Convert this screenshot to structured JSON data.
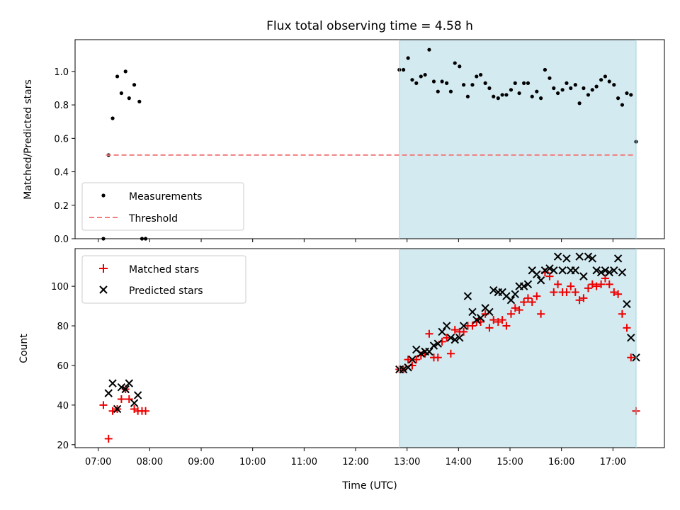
{
  "chart_data": {
    "type": "scatter",
    "title": "Flux total observing time = 4.58 h",
    "xlabel": "Time (UTC)",
    "x_ticks": [
      "07:00",
      "08:00",
      "09:00",
      "10:00",
      "11:00",
      "12:00",
      "13:00",
      "14:00",
      "15:00",
      "16:00",
      "17:00"
    ],
    "xlim": [
      6.55,
      18.0
    ],
    "shaded_region": {
      "x_start": 12.85,
      "x_end": 17.45,
      "color": "#d3eaf0"
    },
    "panels": [
      {
        "ylabel": "Matched/Predicted stars",
        "ylim": [
          0.0,
          1.19
        ],
        "y_ticks": [
          0.0,
          0.2,
          0.4,
          0.6,
          0.8,
          1.0
        ],
        "y_tick_labels": [
          "0.0",
          "0.2",
          "0.4",
          "0.6",
          "0.8",
          "1.0"
        ],
        "legend_position": "lower-left",
        "series": [
          {
            "name": "Measurements",
            "marker": "dot",
            "color": "#000000",
            "points": [
              [
                7.1,
                0.0
              ],
              [
                7.2,
                0.5
              ],
              [
                7.28,
                0.72
              ],
              [
                7.37,
                0.97
              ],
              [
                7.45,
                0.87
              ],
              [
                7.53,
                1.0
              ],
              [
                7.6,
                0.84
              ],
              [
                7.7,
                0.92
              ],
              [
                7.8,
                0.82
              ],
              [
                7.85,
                0.0
              ],
              [
                7.92,
                0.0
              ],
              [
                12.85,
                1.01
              ],
              [
                12.93,
                1.01
              ],
              [
                13.02,
                1.08
              ],
              [
                13.1,
                0.95
              ],
              [
                13.18,
                0.93
              ],
              [
                13.27,
                0.97
              ],
              [
                13.35,
                0.98
              ],
              [
                13.43,
                1.13
              ],
              [
                13.52,
                0.94
              ],
              [
                13.6,
                0.88
              ],
              [
                13.68,
                0.94
              ],
              [
                13.77,
                0.93
              ],
              [
                13.85,
                0.88
              ],
              [
                13.93,
                1.05
              ],
              [
                14.02,
                1.03
              ],
              [
                14.1,
                0.92
              ],
              [
                14.18,
                0.85
              ],
              [
                14.27,
                0.92
              ],
              [
                14.35,
                0.97
              ],
              [
                14.43,
                0.98
              ],
              [
                14.52,
                0.93
              ],
              [
                14.6,
                0.9
              ],
              [
                14.68,
                0.85
              ],
              [
                14.77,
                0.84
              ],
              [
                14.85,
                0.86
              ],
              [
                14.93,
                0.86
              ],
              [
                15.02,
                0.89
              ],
              [
                15.1,
                0.93
              ],
              [
                15.18,
                0.87
              ],
              [
                15.27,
                0.93
              ],
              [
                15.35,
                0.93
              ],
              [
                15.43,
                0.85
              ],
              [
                15.52,
                0.88
              ],
              [
                15.6,
                0.84
              ],
              [
                15.68,
                1.01
              ],
              [
                15.77,
                0.96
              ],
              [
                15.85,
                0.9
              ],
              [
                15.93,
                0.87
              ],
              [
                16.02,
                0.89
              ],
              [
                16.1,
                0.93
              ],
              [
                16.18,
                0.9
              ],
              [
                16.27,
                0.92
              ],
              [
                16.35,
                0.81
              ],
              [
                16.43,
                0.9
              ],
              [
                16.52,
                0.86
              ],
              [
                16.6,
                0.89
              ],
              [
                16.68,
                0.91
              ],
              [
                16.77,
                0.95
              ],
              [
                16.85,
                0.97
              ],
              [
                16.93,
                0.94
              ],
              [
                17.02,
                0.92
              ],
              [
                17.1,
                0.84
              ],
              [
                17.18,
                0.8
              ],
              [
                17.27,
                0.87
              ],
              [
                17.35,
                0.86
              ],
              [
                17.45,
                0.58
              ]
            ]
          },
          {
            "name": "Threshold",
            "marker": "dashed-line",
            "color": "#f08080",
            "points": [
              [
                7.15,
                0.5
              ],
              [
                17.45,
                0.5
              ]
            ]
          }
        ]
      },
      {
        "ylabel": "Count",
        "ylim": [
          18.5,
          119
        ],
        "y_ticks": [
          20,
          40,
          60,
          80,
          100
        ],
        "y_tick_labels": [
          "20",
          "40",
          "60",
          "80",
          "100"
        ],
        "legend_position": "upper-left",
        "series": [
          {
            "name": "Matched stars",
            "marker": "plus",
            "color": "#ee0000",
            "points": [
              [
                7.1,
                40
              ],
              [
                7.2,
                23
              ],
              [
                7.28,
                37
              ],
              [
                7.37,
                38
              ],
              [
                7.45,
                43
              ],
              [
                7.53,
                48
              ],
              [
                7.6,
                43
              ],
              [
                7.7,
                38
              ],
              [
                7.77,
                37
              ],
              [
                7.85,
                37
              ],
              [
                7.92,
                37
              ],
              [
                12.85,
                58
              ],
              [
                12.93,
                58
              ],
              [
                13.02,
                63
              ],
              [
                13.1,
                60
              ],
              [
                13.18,
                63
              ],
              [
                13.27,
                65
              ],
              [
                13.35,
                66
              ],
              [
                13.43,
                76
              ],
              [
                13.52,
                64
              ],
              [
                13.6,
                64
              ],
              [
                13.68,
                72
              ],
              [
                13.77,
                74
              ],
              [
                13.85,
                66
              ],
              [
                13.93,
                78
              ],
              [
                14.02,
                77
              ],
              [
                14.1,
                77
              ],
              [
                14.18,
                80
              ],
              [
                14.27,
                80
              ],
              [
                14.35,
                82
              ],
              [
                14.43,
                82
              ],
              [
                14.52,
                86
              ],
              [
                14.6,
                79
              ],
              [
                14.68,
                83
              ],
              [
                14.77,
                82
              ],
              [
                14.85,
                83
              ],
              [
                14.93,
                80
              ],
              [
                15.02,
                86
              ],
              [
                15.1,
                89
              ],
              [
                15.18,
                88
              ],
              [
                15.27,
                92
              ],
              [
                15.35,
                94
              ],
              [
                15.43,
                92
              ],
              [
                15.52,
                95
              ],
              [
                15.6,
                86
              ],
              [
                15.68,
                107
              ],
              [
                15.77,
                105
              ],
              [
                15.85,
                97
              ],
              [
                15.93,
                101
              ],
              [
                16.02,
                97
              ],
              [
                16.1,
                97
              ],
              [
                16.18,
                100
              ],
              [
                16.27,
                97
              ],
              [
                16.35,
                93
              ],
              [
                16.43,
                94
              ],
              [
                16.52,
                99
              ],
              [
                16.6,
                101
              ],
              [
                16.68,
                100
              ],
              [
                16.77,
                101
              ],
              [
                16.85,
                104
              ],
              [
                16.93,
                101
              ],
              [
                17.02,
                97
              ],
              [
                17.1,
                96
              ],
              [
                17.18,
                86
              ],
              [
                17.27,
                79
              ],
              [
                17.35,
                64
              ],
              [
                17.45,
                37
              ]
            ]
          },
          {
            "name": "Predicted stars",
            "marker": "cross",
            "color": "#000000",
            "points": [
              [
                7.2,
                46
              ],
              [
                7.28,
                51
              ],
              [
                7.37,
                38
              ],
              [
                7.45,
                49
              ],
              [
                7.53,
                48
              ],
              [
                7.6,
                51
              ],
              [
                7.7,
                41
              ],
              [
                7.77,
                45
              ],
              [
                12.85,
                58
              ],
              [
                12.93,
                58
              ],
              [
                13.02,
                59
              ],
              [
                13.1,
                63
              ],
              [
                13.18,
                68
              ],
              [
                13.27,
                66
              ],
              [
                13.35,
                67
              ],
              [
                13.43,
                67
              ],
              [
                13.52,
                70
              ],
              [
                13.6,
                71
              ],
              [
                13.68,
                77
              ],
              [
                13.77,
                80
              ],
              [
                13.85,
                74
              ],
              [
                13.93,
                73
              ],
              [
                14.02,
                74
              ],
              [
                14.1,
                80
              ],
              [
                14.18,
                95
              ],
              [
                14.27,
                87
              ],
              [
                14.35,
                83
              ],
              [
                14.43,
                84
              ],
              [
                14.52,
                89
              ],
              [
                14.6,
                87
              ],
              [
                14.68,
                98
              ],
              [
                14.77,
                97
              ],
              [
                14.85,
                97
              ],
              [
                14.93,
                95
              ],
              [
                15.02,
                93
              ],
              [
                15.1,
                96
              ],
              [
                15.18,
                100
              ],
              [
                15.27,
                100
              ],
              [
                15.35,
                101
              ],
              [
                15.43,
                108
              ],
              [
                15.52,
                106
              ],
              [
                15.6,
                103
              ],
              [
                15.68,
                108
              ],
              [
                15.77,
                109
              ],
              [
                15.85,
                108
              ],
              [
                15.93,
                115
              ],
              [
                16.02,
                108
              ],
              [
                16.1,
                114
              ],
              [
                16.18,
                108
              ],
              [
                16.27,
                108
              ],
              [
                16.35,
                115
              ],
              [
                16.43,
                105
              ],
              [
                16.52,
                115
              ],
              [
                16.6,
                114
              ],
              [
                16.68,
                108
              ],
              [
                16.77,
                107
              ],
              [
                16.85,
                108
              ],
              [
                16.93,
                107
              ],
              [
                17.02,
                108
              ],
              [
                17.1,
                114
              ],
              [
                17.18,
                107
              ],
              [
                17.27,
                91
              ],
              [
                17.35,
                74
              ],
              [
                17.45,
                64
              ]
            ]
          }
        ]
      }
    ]
  }
}
